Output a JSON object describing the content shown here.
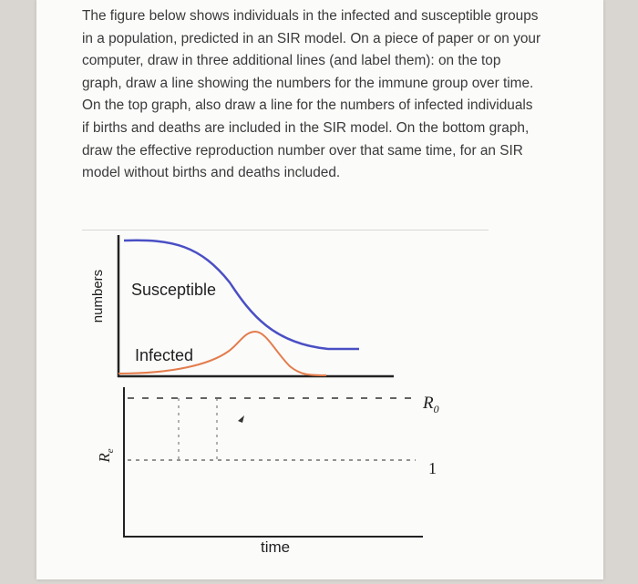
{
  "question": {
    "text": "The figure below shows individuals in the infected and susceptible groups\nin a population, predicted in an SIR model. On a piece of paper or on your\ncomputer, draw in three additional lines (and label them): on the top\ngraph, draw a line showing the numbers for the immune group over time.\nOn the top graph, also draw a line for the numbers of infected individuals\nif births and deaths are included in the SIR model. On the bottom graph,\ndraw the effective reproduction number over that same time, for an SIR\nmodel without births and deaths included."
  },
  "figure": {
    "top_graph": {
      "ylabel": "numbers",
      "susceptible_label": "Susceptible",
      "infected_label": "Infected",
      "colors": {
        "susceptible": "#4a4fc4",
        "infected": "#e37c4c",
        "axis": "#222222"
      }
    },
    "bottom_graph": {
      "ylabel_main": "R",
      "ylabel_sub": "e",
      "r0_label_main": "R",
      "r0_label_sub": "0",
      "one_label": "1",
      "xlabel": "time"
    }
  }
}
